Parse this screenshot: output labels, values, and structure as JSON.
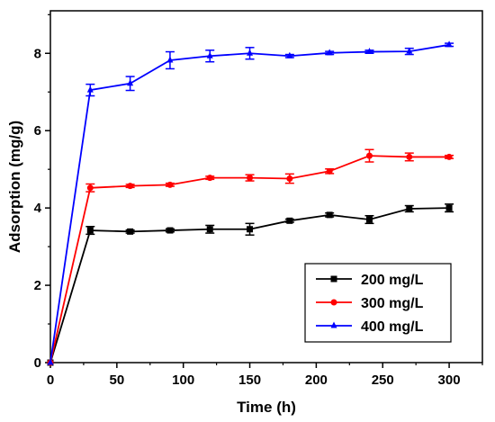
{
  "chart_data": {
    "type": "line",
    "xlabel": "Time (h)",
    "ylabel": "Adsorption (mg/g)",
    "xlim": [
      0,
      325
    ],
    "ylim": [
      0,
      9.1
    ],
    "xticks": [
      0,
      50,
      100,
      150,
      200,
      250,
      300
    ],
    "yticks": [
      0,
      2,
      4,
      6,
      8
    ],
    "legend_position": "bottom-right",
    "grid": false,
    "x": [
      0,
      30,
      60,
      90,
      120,
      150,
      180,
      210,
      240,
      270,
      300
    ],
    "series": [
      {
        "name": "200 mg/L",
        "color": "#000000",
        "marker": "square",
        "values": [
          0,
          3.42,
          3.39,
          3.42,
          3.45,
          3.45,
          3.67,
          3.82,
          3.7,
          3.98,
          4.0
        ],
        "errors": [
          0,
          0.1,
          0.04,
          0.04,
          0.1,
          0.15,
          0.04,
          0.05,
          0.1,
          0.08,
          0.1
        ]
      },
      {
        "name": "300 mg/L",
        "color": "#ff0000",
        "marker": "circle",
        "values": [
          0,
          4.52,
          4.57,
          4.6,
          4.78,
          4.78,
          4.76,
          4.95,
          5.35,
          5.32,
          5.32
        ],
        "errors": [
          0,
          0.1,
          0.04,
          0.04,
          0.04,
          0.08,
          0.12,
          0.06,
          0.16,
          0.1,
          0.04
        ]
      },
      {
        "name": "400 mg/L",
        "color": "#0000ff",
        "marker": "triangle",
        "values": [
          0,
          7.05,
          7.22,
          7.82,
          7.93,
          8.0,
          7.93,
          8.01,
          8.04,
          8.05,
          8.22
        ],
        "errors": [
          0,
          0.15,
          0.18,
          0.22,
          0.15,
          0.15,
          0.04,
          0.04,
          0.04,
          0.08,
          0.04
        ]
      }
    ]
  }
}
